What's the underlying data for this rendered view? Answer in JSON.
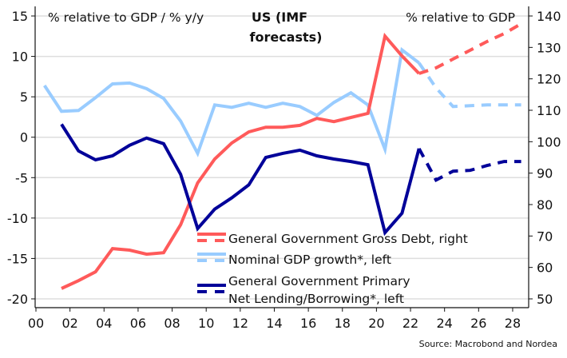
{
  "chart_data": {
    "type": "line",
    "title": "US (IMF forecasts)",
    "title_lines": [
      "US (IMF",
      "forecasts)"
    ],
    "left_axis_label": "% relative to GDP / % y/y",
    "right_axis_label": "% relative to GDP",
    "source": "Source: Macrobond and Nordea",
    "x_ticks": [
      "00",
      "02",
      "04",
      "06",
      "08",
      "10",
      "12",
      "14",
      "16",
      "18",
      "20",
      "22",
      "24",
      "26",
      "28"
    ],
    "x_tick_values": [
      2000,
      2002,
      2004,
      2006,
      2008,
      2010,
      2012,
      2014,
      2016,
      2018,
      2020,
      2022,
      2024,
      2026,
      2028
    ],
    "xlim": [
      2000,
      2029
    ],
    "left_ylim": [
      -21,
      16
    ],
    "left_ticks": [
      15,
      10,
      5,
      0,
      -5,
      -10,
      -15,
      -20
    ],
    "right_ylim": [
      48,
      143
    ],
    "right_ticks": [
      140,
      130,
      120,
      110,
      100,
      90,
      80,
      70,
      60,
      50
    ],
    "grid": true,
    "legend_position": "bottom-center",
    "series": [
      {
        "name": "General Government Gross Debt, right",
        "axis": "right",
        "color": "#ff5a5a",
        "x": [
          2001.5,
          2002.5,
          2003.5,
          2004.5,
          2005.5,
          2006.5,
          2007.5,
          2008.5,
          2009.5,
          2010.5,
          2011.5,
          2012.5,
          2013.5,
          2014.5,
          2015.5,
          2016.5,
          2017.5,
          2018.5,
          2019.5,
          2020.5,
          2021.5,
          2022.5
        ],
        "values": [
          53.3,
          55.8,
          58.6,
          66.0,
          65.5,
          64.2,
          64.7,
          73.6,
          86.9,
          94.5,
          99.6,
          103.1,
          104.6,
          104.6,
          105.2,
          107.4,
          106.4,
          107.7,
          109.0,
          133.6,
          127.3,
          121.7
        ],
        "forecast_x": [
          2022.5,
          2023.5,
          2024.5,
          2025.5,
          2026.5,
          2027.5,
          2028.5
        ],
        "forecast_values": [
          121.7,
          123.5,
          126.3,
          129.1,
          131.9,
          134.4,
          137.5
        ]
      },
      {
        "name": "Nominal GDP growth*, left",
        "axis": "left",
        "color": "#99ccff",
        "x": [
          2000.5,
          2001.5,
          2002.5,
          2003.5,
          2004.5,
          2005.5,
          2006.5,
          2007.5,
          2008.5,
          2009.5,
          2010.5,
          2011.5,
          2012.5,
          2013.5,
          2014.5,
          2015.5,
          2016.5,
          2017.5,
          2018.5,
          2019.5,
          2020.5,
          2021.5,
          2022.5
        ],
        "values": [
          6.4,
          3.2,
          3.3,
          4.9,
          6.6,
          6.7,
          6.0,
          4.8,
          2.0,
          -2.0,
          4.0,
          3.7,
          4.2,
          3.7,
          4.2,
          3.8,
          2.7,
          4.3,
          5.5,
          4.0,
          -1.5,
          10.8,
          9.2
        ],
        "forecast_x": [
          2022.5,
          2023.5,
          2024.5,
          2025.5,
          2026.5,
          2027.5,
          2028.5
        ],
        "forecast_values": [
          9.2,
          6.1,
          3.8,
          3.9,
          4.0,
          4.0,
          4.0
        ]
      },
      {
        "name": "General Government Primary Net Lending/Borrowing*, left",
        "legend_lines": [
          "General Government Primary",
          "Net Lending/Borrowing*, left"
        ],
        "axis": "left",
        "color": "#000099",
        "x": [
          2001.5,
          2002.5,
          2003.5,
          2004.5,
          2005.5,
          2006.5,
          2007.5,
          2008.5,
          2009.5,
          2010.5,
          2011.5,
          2012.5,
          2013.5,
          2014.5,
          2015.5,
          2016.5,
          2017.5,
          2018.5,
          2019.5,
          2020.5,
          2021.5,
          2022.5
        ],
        "values": [
          1.6,
          -1.7,
          -2.8,
          -2.3,
          -1.0,
          -0.1,
          -0.8,
          -4.6,
          -11.3,
          -8.9,
          -7.5,
          -5.9,
          -2.5,
          -2.0,
          -1.6,
          -2.3,
          -2.7,
          -3.0,
          -3.4,
          -11.8,
          -9.4,
          -1.4
        ],
        "forecast_x": [
          2022.5,
          2023.5,
          2024.5,
          2025.5,
          2026.5,
          2027.5,
          2028.5
        ],
        "forecast_values": [
          -1.4,
          -5.3,
          -4.2,
          -4.1,
          -3.5,
          -3.0,
          -3.0
        ]
      }
    ]
  }
}
